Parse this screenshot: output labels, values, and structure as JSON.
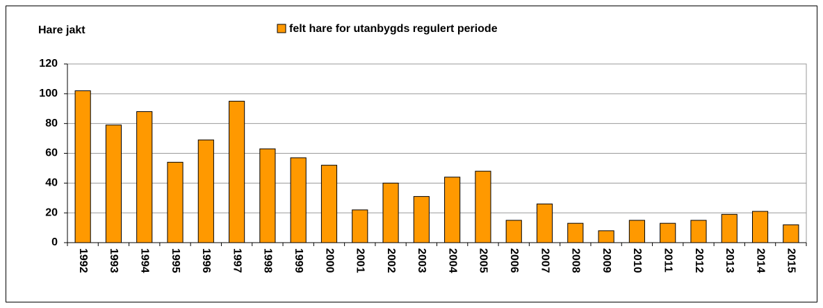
{
  "chart_data": {
    "type": "bar",
    "title": "Hare jakt",
    "series": [
      {
        "name": "felt hare for utanbygds regulert periode",
        "color": "#ff9900",
        "values": [
          102,
          79,
          88,
          54,
          69,
          95,
          63,
          57,
          52,
          22,
          40,
          31,
          44,
          48,
          15,
          26,
          13,
          8,
          15,
          13,
          15,
          19,
          21,
          12
        ]
      }
    ],
    "categories": [
      "1992",
      "1993",
      "1994",
      "1995",
      "1996",
      "1997",
      "1998",
      "1999",
      "2000",
      "2001",
      "2002",
      "2003",
      "2004",
      "2005",
      "2006",
      "2007",
      "2008",
      "2009",
      "2010",
      "2011",
      "2012",
      "2013",
      "2014",
      "2015"
    ],
    "ylim": [
      0,
      120
    ],
    "yticks": [
      0,
      20,
      40,
      60,
      80,
      100,
      120
    ],
    "grid": true,
    "legend": "top"
  }
}
